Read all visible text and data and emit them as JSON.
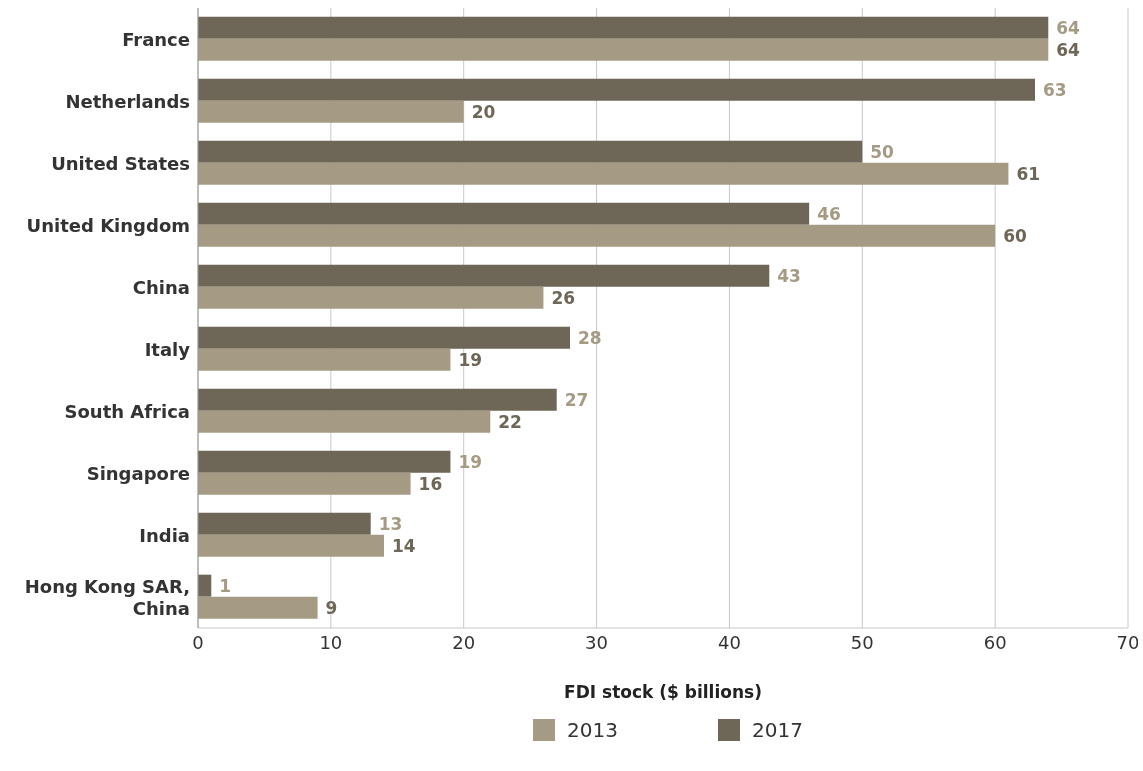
{
  "chart_data": {
    "type": "bar",
    "orientation": "horizontal",
    "xlabel": "FDI stock ($ billions)",
    "categories": [
      "France",
      "Netherlands",
      "United States",
      "United Kingdom",
      "China",
      "Italy",
      "South Africa",
      "Singapore",
      "India",
      "Hong Kong SAR, China"
    ],
    "series": [
      {
        "name": "2013",
        "color": "#a59b84",
        "values": [
          64,
          20,
          61,
          60,
          26,
          19,
          22,
          16,
          14,
          9
        ]
      },
      {
        "name": "2017",
        "color": "#6e6656",
        "values": [
          64,
          63,
          50,
          46,
          43,
          28,
          27,
          19,
          13,
          1
        ]
      }
    ],
    "xlim": [
      0,
      70
    ],
    "xticks": [
      0,
      10,
      20,
      30,
      40,
      50,
      60,
      70
    ],
    "grid": "x",
    "legend": "bottom",
    "data_labels": true
  }
}
